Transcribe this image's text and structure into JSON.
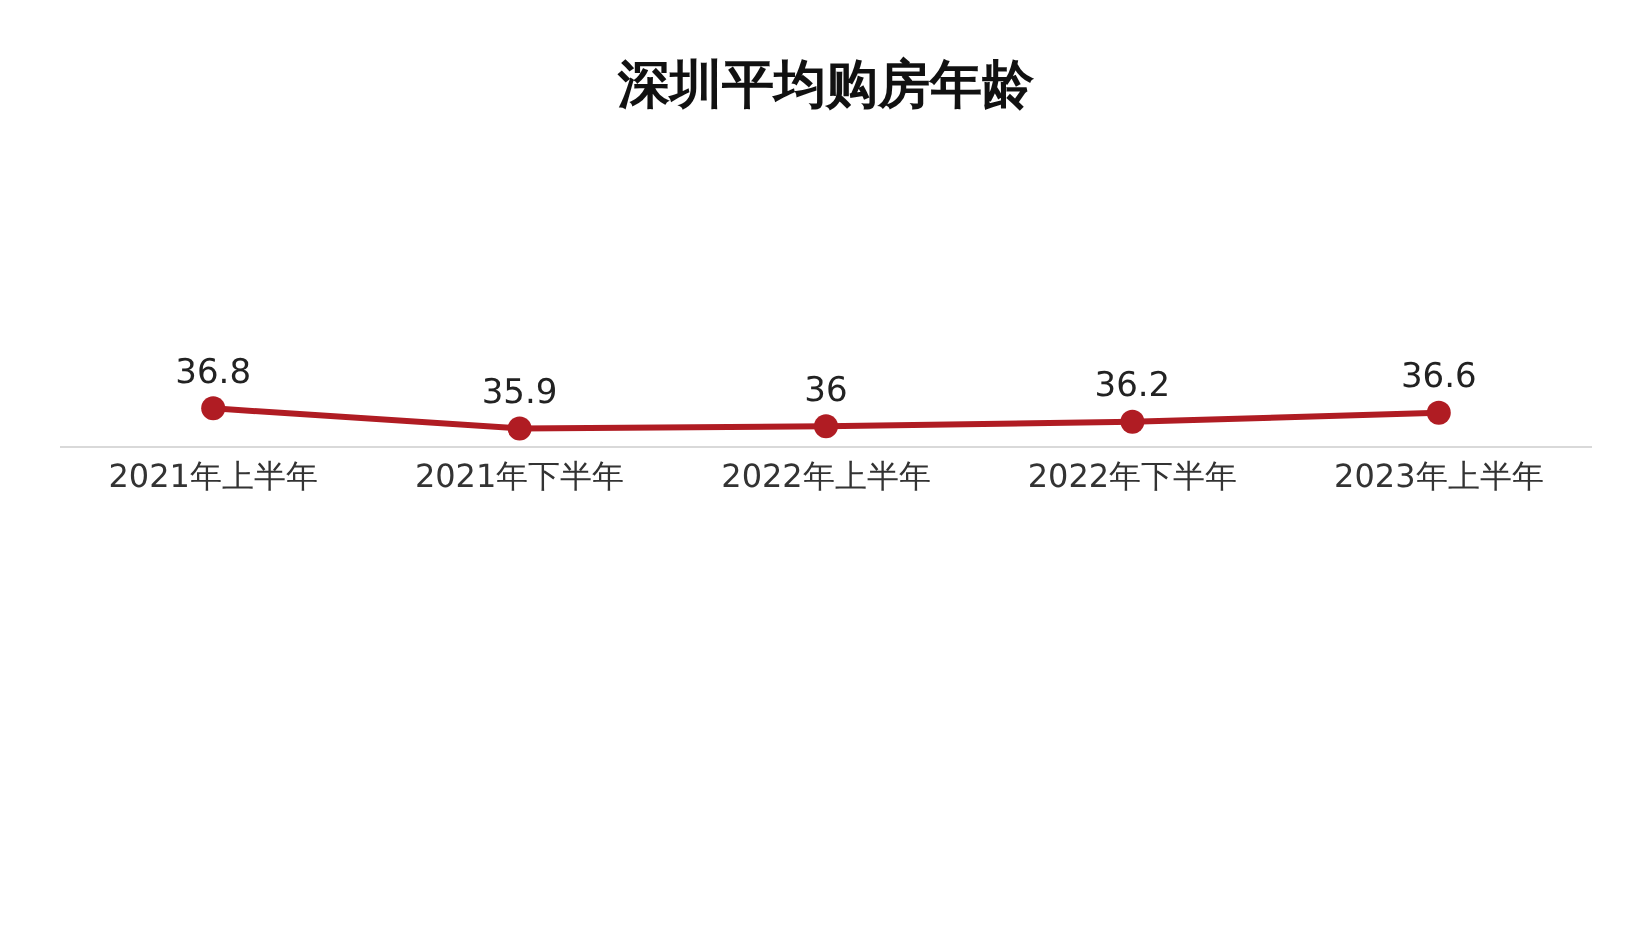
{
  "chart_data": {
    "type": "line",
    "title": "深圳平均购房年龄",
    "categories": [
      "2021年上半年",
      "2021年下半年",
      "2022年上半年",
      "2022年下半年",
      "2023年上半年"
    ],
    "series": [
      {
        "color": "#b01c23",
        "values": [
          36.8,
          35.9,
          36,
          36.2,
          36.6
        ]
      }
    ],
    "data_labels": true,
    "marker": "circle",
    "line_style": "solid"
  }
}
